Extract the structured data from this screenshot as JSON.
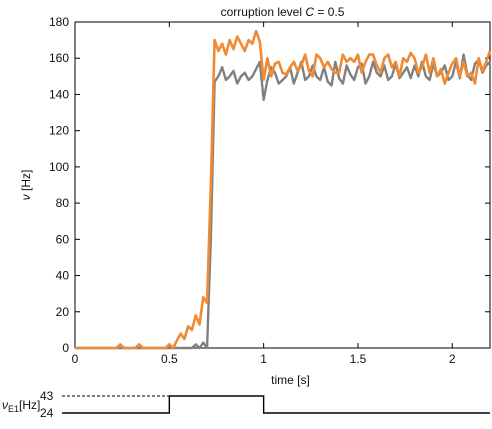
{
  "chart_data": [
    {
      "type": "line",
      "title_prefix": "corruption level ",
      "title_var": "C",
      "title_suffix": " = 0.5",
      "xlabel": "time [s]",
      "ylabel_var": "ν",
      "ylabel_unit": " [Hz]",
      "xlim": [
        0,
        2.2
      ],
      "ylim": [
        0,
        180
      ],
      "xticks": [
        0,
        0.5,
        1,
        1.5,
        2
      ],
      "xtick_labels": [
        "0",
        "0.5",
        "1",
        "1.5",
        "2"
      ],
      "yticks": [
        0,
        20,
        40,
        60,
        80,
        100,
        120,
        140,
        160,
        180
      ],
      "ytick_labels": [
        "0",
        "20",
        "40",
        "60",
        "80",
        "100",
        "120",
        "140",
        "160",
        "180"
      ],
      "x": [
        0.0,
        0.02,
        0.04,
        0.06,
        0.08,
        0.1,
        0.12,
        0.14,
        0.16,
        0.18,
        0.2,
        0.22,
        0.24,
        0.26,
        0.28,
        0.3,
        0.32,
        0.34,
        0.36,
        0.38,
        0.4,
        0.42,
        0.44,
        0.46,
        0.48,
        0.5,
        0.52,
        0.54,
        0.56,
        0.58,
        0.6,
        0.62,
        0.64,
        0.66,
        0.68,
        0.7,
        0.72,
        0.74,
        0.76,
        0.78,
        0.8,
        0.82,
        0.84,
        0.86,
        0.88,
        0.9,
        0.92,
        0.94,
        0.96,
        0.98,
        1.0,
        1.02,
        1.04,
        1.06,
        1.08,
        1.1,
        1.12,
        1.14,
        1.16,
        1.18,
        1.2,
        1.22,
        1.24,
        1.26,
        1.28,
        1.3,
        1.32,
        1.34,
        1.36,
        1.38,
        1.4,
        1.42,
        1.44,
        1.46,
        1.48,
        1.5,
        1.52,
        1.54,
        1.56,
        1.58,
        1.6,
        1.62,
        1.64,
        1.66,
        1.68,
        1.7,
        1.72,
        1.74,
        1.76,
        1.78,
        1.8,
        1.82,
        1.84,
        1.86,
        1.88,
        1.9,
        1.92,
        1.94,
        1.96,
        1.98,
        2.0,
        2.02,
        2.04,
        2.06,
        2.08,
        2.1,
        2.12,
        2.14,
        2.16,
        2.18,
        2.2
      ],
      "series": [
        {
          "color": "#808080",
          "values": [
            0,
            0,
            0,
            0,
            0,
            0,
            0,
            0,
            0,
            0,
            0,
            0,
            0,
            0,
            0,
            0,
            0,
            0,
            0,
            0,
            0,
            0,
            0,
            0,
            0,
            0,
            0,
            0,
            0,
            0,
            0,
            0,
            2,
            0,
            3,
            0,
            60,
            147,
            150,
            155,
            148,
            150,
            153,
            146,
            150,
            152,
            148,
            150,
            154,
            158,
            137,
            148,
            155,
            152,
            146,
            148,
            150,
            155,
            146,
            152,
            158,
            148,
            150,
            156,
            150,
            148,
            155,
            147,
            145,
            158,
            149,
            146,
            156,
            151,
            148,
            155,
            157,
            146,
            150,
            158,
            152,
            150,
            156,
            148,
            150,
            157,
            149,
            152,
            155,
            149,
            156,
            150,
            158,
            150,
            148,
            157,
            150,
            152,
            156,
            148,
            150,
            158,
            149,
            162,
            151,
            148,
            157,
            159,
            152,
            156,
            158
          ]
        },
        {
          "color": "#f08a33",
          "values": [
            0,
            0,
            0,
            0,
            0,
            0,
            0,
            0,
            0,
            0,
            0,
            0,
            2,
            0,
            0,
            0,
            0,
            2,
            0,
            0,
            0,
            0,
            0,
            0,
            0,
            2,
            0,
            4,
            8,
            5,
            12,
            10,
            18,
            13,
            28,
            25,
            90,
            170,
            164,
            168,
            162,
            170,
            165,
            172,
            168,
            164,
            170,
            168,
            175,
            169,
            148,
            160,
            150,
            157,
            158,
            152,
            151,
            155,
            158,
            153,
            156,
            162,
            153,
            150,
            162,
            160,
            155,
            158,
            154,
            152,
            152,
            162,
            158,
            160,
            158,
            162,
            152,
            158,
            162,
            162,
            156,
            152,
            160,
            162,
            155,
            158,
            150,
            160,
            158,
            163,
            160,
            152,
            155,
            162,
            152,
            160,
            150,
            154,
            146,
            152,
            157,
            160,
            150,
            158,
            150,
            152,
            146,
            160,
            153,
            158,
            164
          ]
        }
      ]
    },
    {
      "type": "line",
      "ylabel_var": "ν",
      "ylabel_sub": "E1",
      "ylabel_unit": "[Hz]",
      "ytick_labels": [
        "43",
        "24"
      ],
      "yticks": [
        43,
        24
      ],
      "steps": [
        {
          "x": 0,
          "y": 24
        },
        {
          "x": 0.5,
          "y": 24
        },
        {
          "x": 0.5,
          "y": 43
        },
        {
          "x": 1.0,
          "y": 43
        },
        {
          "x": 1.0,
          "y": 24
        },
        {
          "x": 2.2,
          "y": 24
        }
      ]
    }
  ]
}
